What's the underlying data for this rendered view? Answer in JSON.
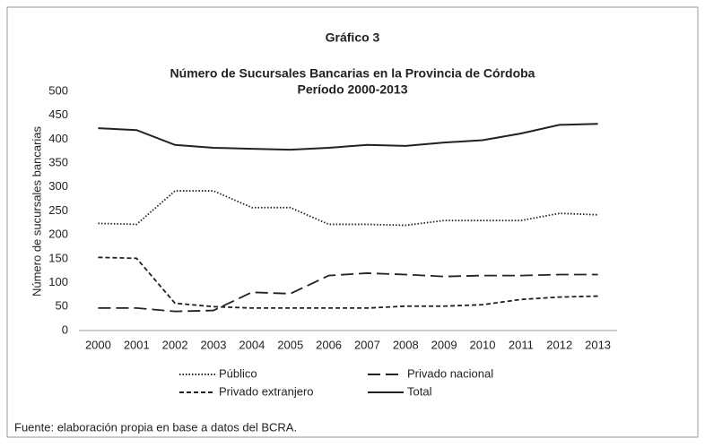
{
  "chart_data": {
    "type": "line",
    "figure_label": "Gráfico 3",
    "title": "Número de Sucursales Bancarias en la Provincia de Córdoba",
    "subtitle": "Período 2000-2013",
    "y_label": "Número de sucursales bancarias",
    "source": "Fuente: elaboración propia en base a datos del BCRA.",
    "categories": [
      "2000",
      "2001",
      "2002",
      "2003",
      "2004",
      "2005",
      "2006",
      "2007",
      "2008",
      "2009",
      "2010",
      "2011",
      "2012",
      "2013"
    ],
    "ylim": [
      0,
      500
    ],
    "yticks": [
      0,
      50,
      100,
      150,
      200,
      250,
      300,
      350,
      400,
      450,
      500
    ],
    "grid": false,
    "series": [
      {
        "name": "Público",
        "color": "#222222",
        "dash": "dotted",
        "values": [
          224,
          222,
          292,
          292,
          257,
          257,
          222,
          222,
          220,
          230,
          230,
          230,
          245,
          242
        ]
      },
      {
        "name": "Privado nacional",
        "color": "#222222",
        "dash": "long",
        "values": [
          47,
          47,
          40,
          42,
          80,
          77,
          115,
          120,
          117,
          113,
          115,
          115,
          117,
          117
        ]
      },
      {
        "name": "Privado extranjero",
        "color": "#222222",
        "dash": "short",
        "values": [
          153,
          151,
          57,
          50,
          47,
          47,
          47,
          47,
          51,
          51,
          54,
          65,
          70,
          72
        ]
      },
      {
        "name": "Total",
        "color": "#222222",
        "dash": "solid",
        "values": [
          423,
          419,
          388,
          382,
          380,
          378,
          382,
          388,
          386,
          393,
          398,
          412,
          430,
          432
        ]
      }
    ]
  }
}
